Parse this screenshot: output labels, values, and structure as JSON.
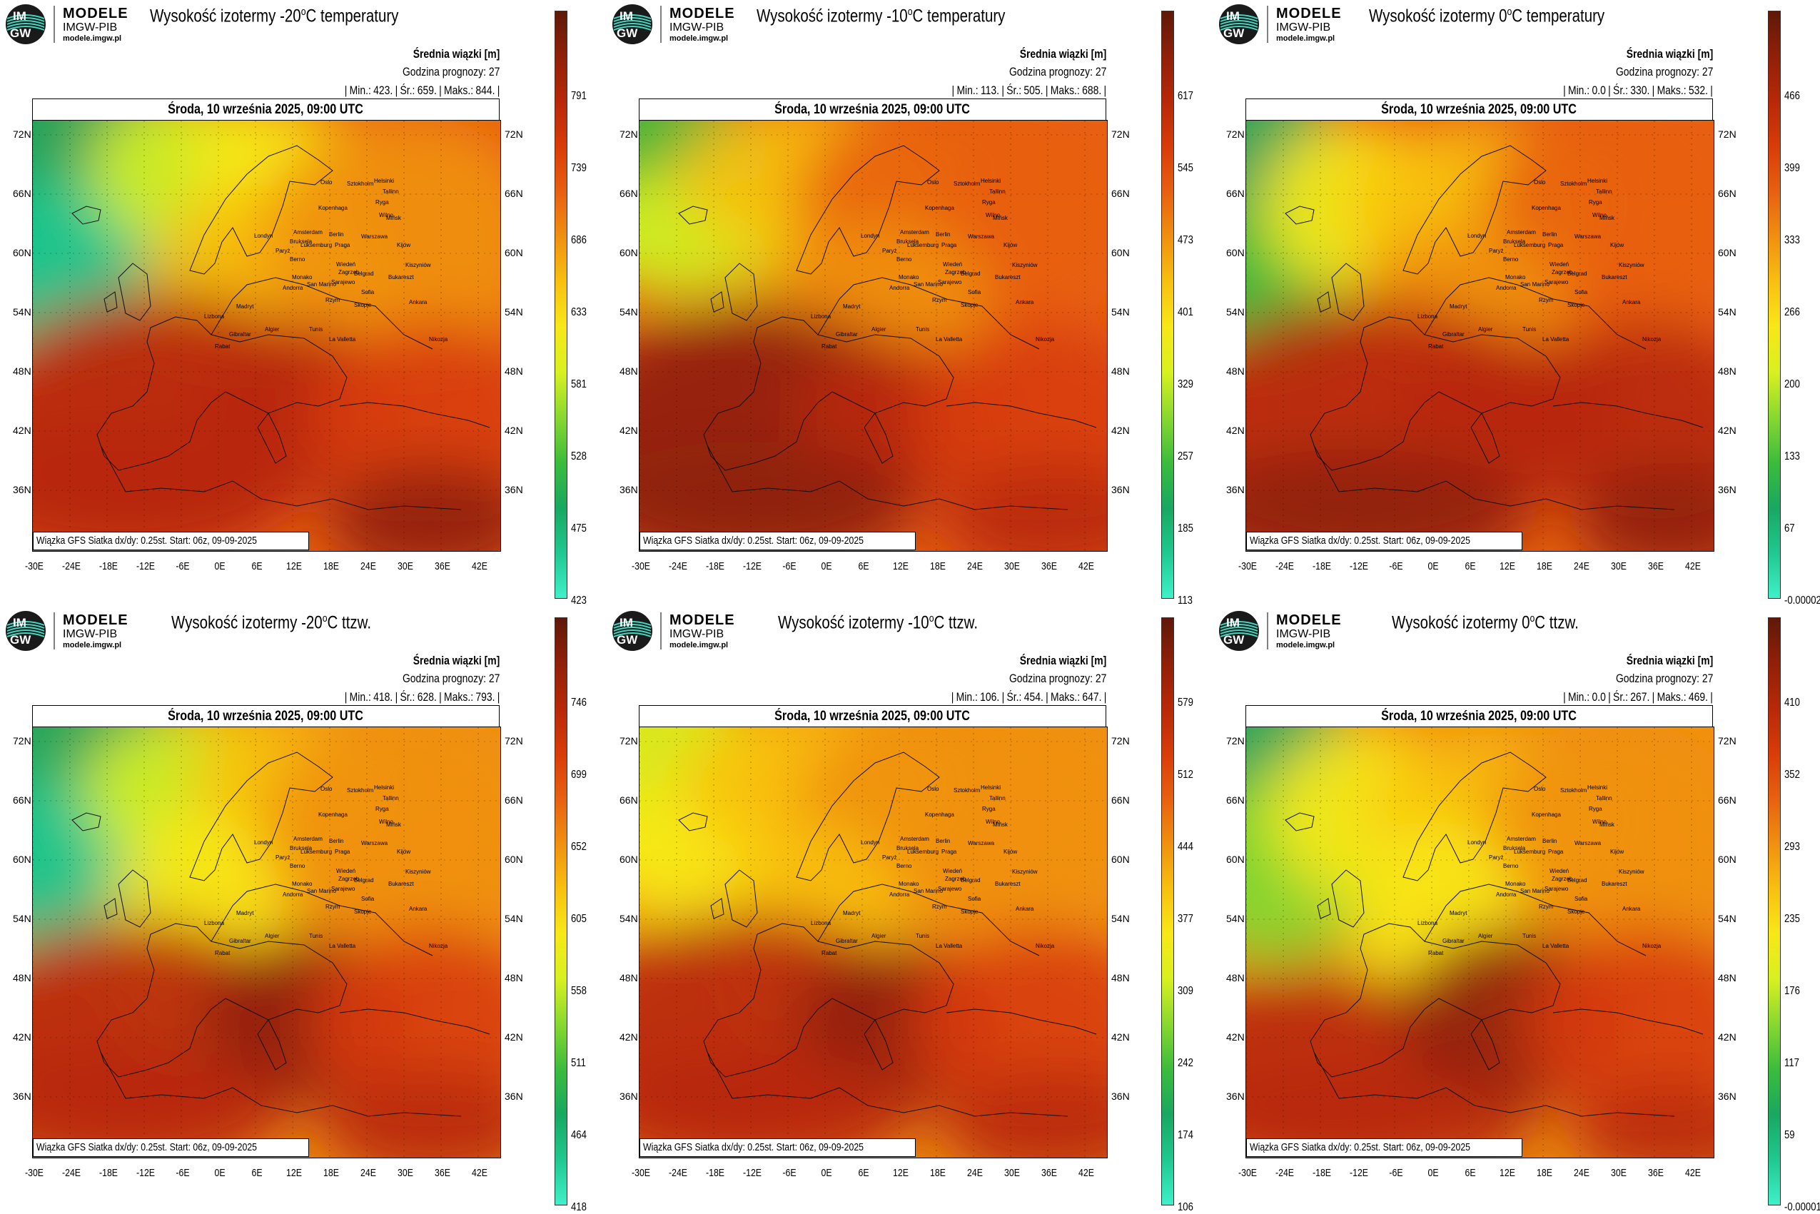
{
  "logo": {
    "badge_top": "IM",
    "badge_bottom": "GW",
    "line1": "MODELE",
    "line2": "IMGW-PIB",
    "line3": "modele.imgw.pl"
  },
  "common": {
    "mean_label": "Średnia wiązki [m]",
    "forecast_hour": "Godzina prognozy: 27",
    "date": "Środa, 10 września 2025, 09:00 UTC",
    "footer": "Wiązka GFS Siatka dx/dy: 0.25st. Start: 06z, 09-09-2025",
    "lon_labels": [
      "-30E",
      "-24E",
      "-18E",
      "-12E",
      "-6E",
      "0E",
      "6E",
      "12E",
      "18E",
      "24E",
      "30E",
      "36E",
      "42E"
    ],
    "lat_labels": [
      "72N",
      "66N",
      "60N",
      "54N",
      "48N",
      "42N",
      "36N"
    ],
    "cities": [
      "Oslo",
      "Sztokholm",
      "Helsinki",
      "Tallinn",
      "Ryga",
      "Kopenhaga",
      "Wilno",
      "Mińsk",
      "Amsterdam",
      "Londyn",
      "Berlin",
      "Warszawa",
      "Bruksela",
      "Luksemburg",
      "Paryż",
      "Praga",
      "Kijów",
      "Berno",
      "Wiedeń",
      "Kiszyniów",
      "Monako",
      "Zagrzeb",
      "Belgrad",
      "Bukareszt",
      "Andorra",
      "San Marino",
      "Sarajewo",
      "Sofia",
      "Rzym",
      "Skopje",
      "Madryt",
      "Ankara",
      "Lizbona",
      "Gibraltar",
      "Algier",
      "Tunis",
      "La Valletta",
      "Rabat",
      "Nikozja"
    ]
  },
  "panels": [
    {
      "title_prefix": "Wysokość izotermy -20",
      "title_deg": "o",
      "title_suffix": "C temperatury",
      "stats": {
        "min_label": "Min.:",
        "min": "423.",
        "avg_label": "Śr.:",
        "avg": "659.",
        "max_label": "Maks.:",
        "max": "844."
      },
      "colorbar_ticks": [
        "791",
        "739",
        "686",
        "633",
        "581",
        "528",
        "475",
        "423"
      ]
    },
    {
      "title_prefix": "Wysokość izotermy -10",
      "title_deg": "o",
      "title_suffix": "C temperatury",
      "stats": {
        "min_label": "Min.:",
        "min": "113.",
        "avg_label": "Śr.:",
        "avg": "505.",
        "max_label": "Maks.:",
        "max": "688."
      },
      "colorbar_ticks": [
        "617",
        "545",
        "473",
        "401",
        "329",
        "257",
        "185",
        "113"
      ]
    },
    {
      "title_prefix": "Wysokość izotermy 0",
      "title_deg": "o",
      "title_suffix": "C temperatury",
      "stats": {
        "min_label": "Min.:",
        "min": "0.0",
        "avg_label": "Śr.:",
        "avg": "330.",
        "max_label": "Maks.:",
        "max": "532."
      },
      "colorbar_ticks": [
        "466",
        "399",
        "333",
        "266",
        "200",
        "133",
        "67",
        "-0.00002"
      ]
    },
    {
      "title_prefix": "Wysokość izotermy -20",
      "title_deg": "o",
      "title_suffix": "C ttzw.",
      "stats": {
        "min_label": "Min.:",
        "min": "418.",
        "avg_label": "Śr.:",
        "avg": "628.",
        "max_label": "Maks.:",
        "max": "793."
      },
      "colorbar_ticks": [
        "746",
        "699",
        "652",
        "605",
        "558",
        "511",
        "464",
        "418"
      ]
    },
    {
      "title_prefix": "Wysokość izotermy -10",
      "title_deg": "o",
      "title_suffix": "C ttzw.",
      "stats": {
        "min_label": "Min.:",
        "min": "106.",
        "avg_label": "Śr.:",
        "avg": "454.",
        "max_label": "Maks.:",
        "max": "647."
      },
      "colorbar_ticks": [
        "579",
        "512",
        "444",
        "377",
        "309",
        "242",
        "174",
        "106"
      ]
    },
    {
      "title_prefix": "Wysokość izotermy 0",
      "title_deg": "o",
      "title_suffix": "C ttzw.",
      "stats": {
        "min_label": "Min.:",
        "min": "0.0",
        "avg_label": "Śr.:",
        "avg": "267.",
        "max_label": "Maks.:",
        "max": "469."
      },
      "colorbar_ticks": [
        "410",
        "352",
        "293",
        "235",
        "176",
        "117",
        "59",
        "-0.00001"
      ]
    }
  ],
  "colors": {
    "scale": [
      "#40f0c8",
      "#20c890",
      "#18a860",
      "#3cbc3c",
      "#88d830",
      "#d8f020",
      "#f8e818",
      "#f8c010",
      "#f09010",
      "#e86010",
      "#d83c08",
      "#b82808",
      "#902008",
      "#601808"
    ]
  }
}
